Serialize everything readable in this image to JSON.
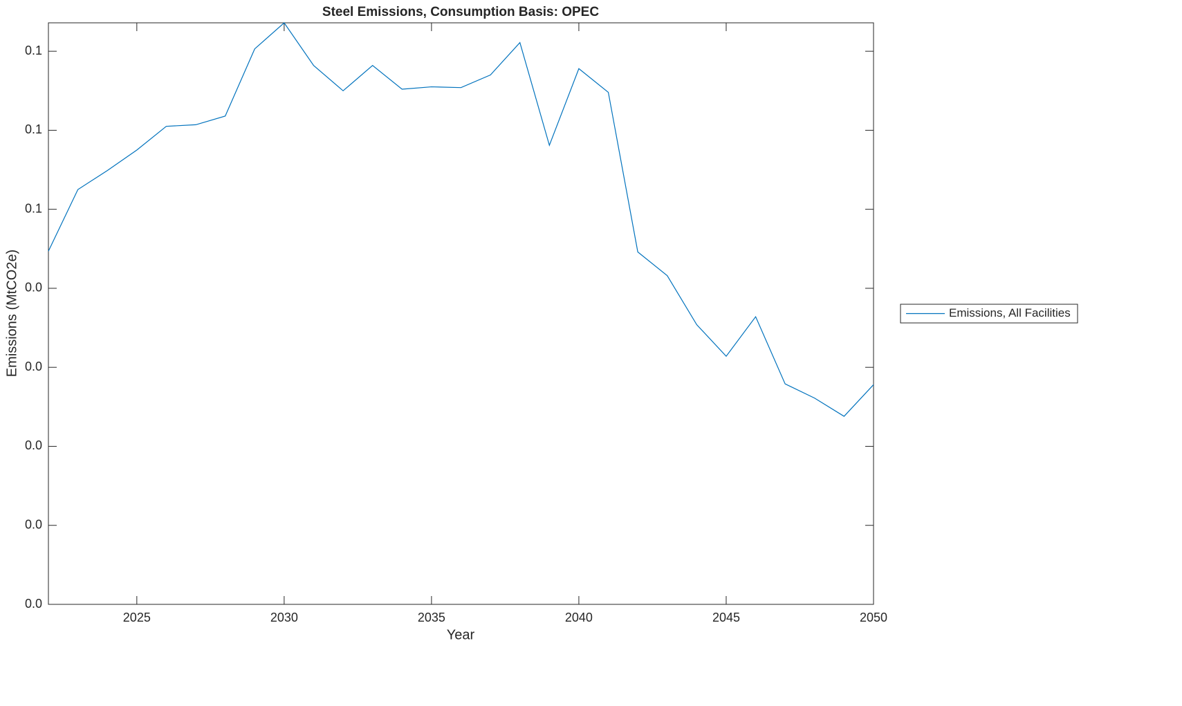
{
  "chart_data": {
    "type": "line",
    "title": "Steel Emissions, Consumption Basis: OPEC",
    "x_label": "Year",
    "y_label": "Emissions (MtCO2e)",
    "x": [
      2022,
      2023,
      2024,
      2025,
      2026,
      2027,
      2028,
      2029,
      2030,
      2031,
      2032,
      2033,
      2034,
      2035,
      2036,
      2037,
      2038,
      2039,
      2040,
      2041,
      2042,
      2043,
      2044,
      2045,
      2046,
      2047,
      2048,
      2049,
      2050
    ],
    "series": [
      {
        "name": "Emissions, All Facilities",
        "color": "#0072bd",
        "values": [
          0.0447,
          0.0525,
          0.0549,
          0.0575,
          0.0605,
          0.0607,
          0.0618,
          0.0703,
          0.0736,
          0.0682,
          0.065,
          0.0682,
          0.0652,
          0.0655,
          0.0654,
          0.067,
          0.0711,
          0.0581,
          0.0678,
          0.0648,
          0.0446,
          0.0416,
          0.0354,
          0.0314,
          0.0364,
          0.0279,
          0.0261,
          0.0238,
          0.0278
        ]
      }
    ],
    "xlim": [
      2022,
      2050
    ],
    "xticks": [
      2025,
      2030,
      2035,
      2040,
      2045,
      2050
    ],
    "ylim": [
      0,
      0.0736
    ],
    "yticks": [
      {
        "value": 0,
        "label": "0.0"
      },
      {
        "value": 0.01,
        "label": "0.0"
      },
      {
        "value": 0.02,
        "label": "0.0"
      },
      {
        "value": 0.03,
        "label": "0.0"
      },
      {
        "value": 0.04,
        "label": "0.0"
      },
      {
        "value": 0.05,
        "label": "0.1"
      },
      {
        "value": 0.06,
        "label": "0.1"
      },
      {
        "value": 0.07,
        "label": "0.1"
      }
    ],
    "grid": false,
    "legend": "outside-right"
  }
}
